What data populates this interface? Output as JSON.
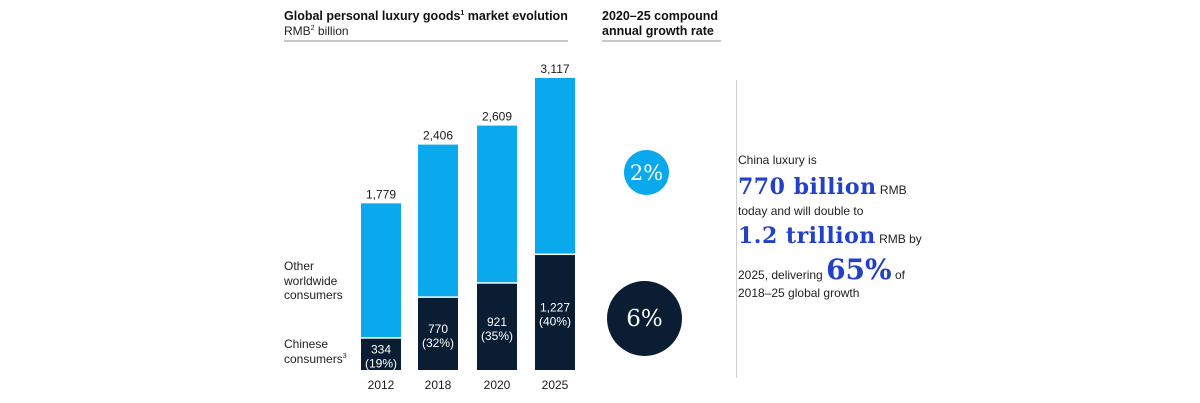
{
  "header": {
    "title": "Global personal luxury goods",
    "title_sup": "1",
    "title_tail": " market evolution",
    "subtitle": "RMB",
    "subtitle_sup": "2",
    "subtitle_tail": " billion",
    "cagr_line1": "2020–25 compound",
    "cagr_line2": "annual growth rate"
  },
  "legend": {
    "other_line1": "Other",
    "other_line2": "worldwide",
    "other_line3": "consumers",
    "chinese_line1": "Chinese",
    "chinese_line2": "consumers",
    "chinese_sup": "3"
  },
  "colors": {
    "other": "#0aa8ec",
    "chinese": "#0b1d33",
    "accent_text": "#2240c8"
  },
  "cagr": {
    "other": "2%",
    "chinese": "6%"
  },
  "callout": {
    "l1": "China luxury is",
    "big1": "770 billion",
    "l2_tail": " RMB",
    "l3": "today and will double to",
    "big2": "1.2 trillion",
    "l4_tail": " RMB by",
    "l5_head": "2025, delivering ",
    "big3": "65%",
    "l5_tail": " of",
    "l6": "2018–25 global growth"
  },
  "chart_data": {
    "type": "bar",
    "stacked": true,
    "title": "Global personal luxury goods market evolution",
    "subtitle": "RMB billion",
    "xlabel": "",
    "ylabel": "RMB billion",
    "categories": [
      "2012",
      "2018",
      "2020",
      "2025"
    ],
    "totals": [
      1779,
      2406,
      2609,
      3117
    ],
    "total_labels": [
      "1,779",
      "2,406",
      "2,609",
      "3,117"
    ],
    "series": [
      {
        "name": "Chinese consumers",
        "values": [
          334,
          770,
          921,
          1227
        ],
        "labels": [
          "334",
          "770",
          "921",
          "1,227"
        ],
        "share_labels": [
          "(19%)",
          "(32%)",
          "(35%)",
          "(40%)"
        ]
      },
      {
        "name": "Other worldwide consumers",
        "values": [
          1445,
          1636,
          1688,
          1890
        ]
      }
    ],
    "ylim": [
      0,
      3117
    ],
    "grid": false,
    "legend": "left"
  }
}
